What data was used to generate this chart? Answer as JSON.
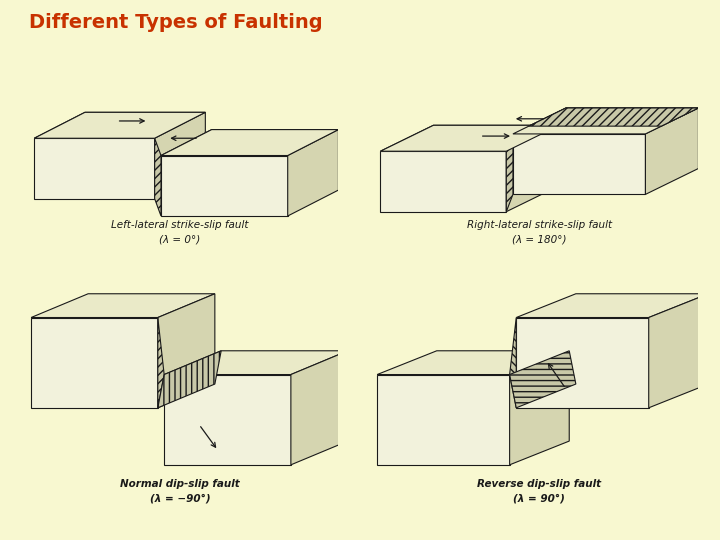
{
  "title": "Different Types of Faulting",
  "title_color": "#c83200",
  "title_fontsize": 14,
  "bg_color": "#f8f8d0",
  "lw": 0.8,
  "line_color": "#1a1a1a",
  "face_front": "#f2f2dc",
  "face_top": "#eaeac8",
  "face_side": "#d5d5b0",
  "face_fault_hatch": "#c8c8a8",
  "labels": [
    [
      "Left-lateral strike-slip fault",
      "(λ = 0°)"
    ],
    [
      "Right-lateral strike-slip fault",
      "(λ = 180°)"
    ],
    [
      "Normal dip-slip fault",
      "(λ = −90°)"
    ],
    [
      "Reverse dip-slip fault",
      "(λ = 90°)"
    ]
  ],
  "label_fontsize": 7.5
}
